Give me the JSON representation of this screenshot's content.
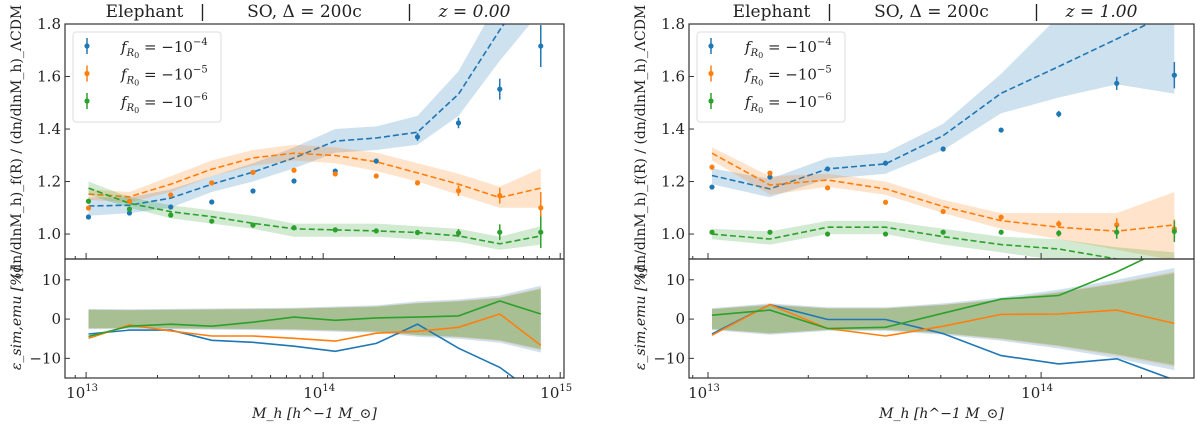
{
  "figure": {
    "colors": {
      "fR4": "#1f77b4",
      "fR5": "#ff7f0e",
      "fR6": "#2ca02c",
      "frame": "#333333"
    },
    "legend": [
      {
        "key": "fR4",
        "label": "f_R0 = −10^−4",
        "base": "f",
        "sub": "R",
        "subsub": "0",
        "eq": " = −10",
        "sup": "−4"
      },
      {
        "key": "fR5",
        "label": "f_R0 = −10^−5",
        "base": "f",
        "sub": "R",
        "subsub": "0",
        "eq": " = −10",
        "sup": "−5"
      },
      {
        "key": "fR6",
        "label": "f_R0 = −10^−6",
        "base": "f",
        "sub": "R",
        "subsub": "0",
        "eq": " = −10",
        "sup": "−6"
      }
    ],
    "ylabel_top": "(dn/dlnM_h)_f(R) / (dn/dlnM_h)_ΛCDM",
    "ylabel_bottom": "ε_sim,emu [%]",
    "xlabel": "M_h [h^−1 M_⊙]"
  },
  "chart_data": [
    {
      "type": "line",
      "panel": "left",
      "title": "Elephant  |  SO, Δ = 200c  |  z = 0.00",
      "title_parts": [
        "Elephant",
        "|",
        "SO,  Δ = 200c",
        "|",
        "z = 0.00"
      ],
      "xscale": "log",
      "xlim_log10": [
        12.911,
        15.016
      ],
      "xticks": [
        {
          "log10": 13,
          "label": "10",
          "sup": "13"
        },
        {
          "log10": 14,
          "label": "10",
          "sup": "14"
        },
        {
          "log10": 15,
          "label": "10",
          "sup": "15"
        }
      ],
      "log10_mass": [
        13.01,
        13.183,
        13.357,
        13.53,
        13.704,
        13.877,
        14.051,
        14.224,
        14.398,
        14.571,
        14.745,
        14.918
      ],
      "top": {
        "ylim": [
          0.905,
          1.8
        ],
        "yticks": [
          "1.0",
          "1.2",
          "1.4",
          "1.6",
          "1.8"
        ],
        "ytick_values": [
          1.0,
          1.2,
          1.4,
          1.6,
          1.8
        ],
        "legend_position": "upper-left",
        "series": [
          {
            "key": "fR4",
            "points": [
              1.065,
              1.08,
              1.103,
              1.122,
              1.164,
              1.202,
              1.24,
              1.278,
              1.37,
              1.423,
              1.552,
              1.716
            ],
            "errors": [
              0.004,
              0.004,
              0.004,
              0.005,
              0.005,
              0.006,
              0.007,
              0.01,
              0.015,
              0.02,
              0.04,
              0.08
            ],
            "emulator": [
              1.107,
              1.11,
              1.137,
              1.19,
              1.236,
              1.29,
              1.354,
              1.366,
              1.388,
              1.533,
              1.777,
              2.0
            ],
            "band_low": [
              1.07,
              1.08,
              1.1,
              1.16,
              1.2,
              1.25,
              1.31,
              1.32,
              1.34,
              1.45,
              1.66,
              1.85
            ],
            "band_high": [
              1.14,
              1.14,
              1.17,
              1.22,
              1.27,
              1.33,
              1.4,
              1.41,
              1.45,
              1.62,
              1.9,
              2.1
            ]
          },
          {
            "key": "fR5",
            "points": [
              1.099,
              1.125,
              1.149,
              1.195,
              1.235,
              1.243,
              1.229,
              1.221,
              1.195,
              1.165,
              1.146,
              1.1
            ],
            "errors": [
              0.003,
              0.003,
              0.003,
              0.004,
              0.004,
              0.005,
              0.006,
              0.008,
              0.01,
              0.02,
              0.03,
              0.06
            ],
            "emulator": [
              1.152,
              1.142,
              1.19,
              1.247,
              1.29,
              1.308,
              1.299,
              1.275,
              1.233,
              1.19,
              1.139,
              1.175
            ],
            "band_low": [
              1.13,
              1.12,
              1.16,
              1.22,
              1.26,
              1.28,
              1.27,
              1.24,
              1.2,
              1.15,
              1.1,
              1.1
            ],
            "band_high": [
              1.17,
              1.16,
              1.22,
              1.28,
              1.32,
              1.34,
              1.33,
              1.31,
              1.27,
              1.23,
              1.18,
              1.25
            ]
          },
          {
            "key": "fR6",
            "points": [
              1.125,
              1.095,
              1.072,
              1.049,
              1.034,
              1.024,
              1.016,
              1.012,
              1.006,
              1.004,
              1.007,
              1.007
            ],
            "errors": [
              0.003,
              0.003,
              0.003,
              0.003,
              0.004,
              0.004,
              0.005,
              0.006,
              0.01,
              0.015,
              0.03,
              0.06
            ],
            "emulator": [
              1.175,
              1.117,
              1.085,
              1.066,
              1.041,
              1.02,
              1.016,
              1.012,
              1.006,
              0.993,
              0.963,
              0.993
            ],
            "band_low": [
              1.15,
              1.1,
              1.06,
              1.04,
              1.02,
              0.99,
              0.99,
              0.99,
              0.98,
              0.97,
              0.94,
              0.96
            ],
            "band_high": [
              1.2,
              1.14,
              1.11,
              1.09,
              1.07,
              1.04,
              1.04,
              1.04,
              1.03,
              1.02,
              0.99,
              1.03
            ]
          }
        ]
      },
      "bottom": {
        "ylim": [
          -15,
          15.3
        ],
        "yticks": [
          "−10",
          "0",
          "10"
        ],
        "ytick_values": [
          -10,
          0,
          10
        ],
        "band_halfwidth": [
          2.6,
          2.5,
          2.6,
          2.7,
          2.8,
          2.9,
          3.2,
          3.5,
          4.5,
          5.0,
          6.0,
          8.5
        ],
        "series": [
          {
            "key": "fR4",
            "values": [
              -3.8,
              -2.8,
              -2.8,
              -5.4,
              -5.9,
              -6.9,
              -8.2,
              -6.2,
              -1.3,
              -7.4,
              -12.3,
              -20
            ]
          },
          {
            "key": "fR5",
            "values": [
              -4.9,
              -1.5,
              -3.0,
              -4.3,
              -4.3,
              -4.9,
              -5.6,
              -3.6,
              -3.1,
              -2.1,
              1.3,
              -6.7
            ]
          },
          {
            "key": "fR6",
            "values": [
              -4.4,
              -1.8,
              -1.3,
              -1.8,
              -0.8,
              0.5,
              -0.3,
              0.3,
              0.5,
              0.8,
              4.6,
              1.3
            ]
          }
        ]
      }
    },
    {
      "type": "line",
      "panel": "right",
      "title": "Elephant  |  SO, Δ = 200c  |  z = 1.00",
      "title_parts": [
        "Elephant",
        "|",
        "SO,  Δ = 200c",
        "|",
        "z = 1.00"
      ],
      "xscale": "log",
      "xlim_log10": [
        12.943,
        14.459
      ],
      "xticks": [
        {
          "log10": 13,
          "label": "10",
          "sup": "13"
        },
        {
          "log10": 14,
          "label": "10",
          "sup": "14"
        }
      ],
      "log10_mass": [
        13.012,
        13.186,
        13.359,
        13.533,
        13.706,
        13.88,
        14.053,
        14.227,
        14.4
      ],
      "top": {
        "ylim": [
          0.905,
          1.8
        ],
        "yticks": [
          "1.0",
          "1.2",
          "1.4",
          "1.6",
          "1.8"
        ],
        "ytick_values": [
          1.0,
          1.2,
          1.4,
          1.6,
          1.8
        ],
        "legend_position": "upper-left",
        "series": [
          {
            "key": "fR4",
            "points": [
              1.179,
              1.217,
              1.248,
              1.27,
              1.324,
              1.396,
              1.457,
              1.574,
              1.605
            ],
            "errors": [
              0.004,
              0.004,
              0.005,
              0.005,
              0.006,
              0.008,
              0.012,
              0.025,
              0.05
            ],
            "emulator": [
              1.223,
              1.172,
              1.248,
              1.267,
              1.375,
              1.536,
              1.638,
              1.743,
              1.85
            ],
            "band_low": [
              1.19,
              1.14,
              1.21,
              1.23,
              1.32,
              1.46,
              1.52,
              1.57,
              1.535
            ],
            "band_high": [
              1.25,
              1.21,
              1.29,
              1.31,
              1.42,
              1.61,
              1.83,
              2.0,
              2.1
            ]
          },
          {
            "key": "fR5",
            "points": [
              1.255,
              1.232,
              1.176,
              1.121,
              1.086,
              1.064,
              1.039,
              1.035,
              1.02
            ],
            "errors": [
              0.003,
              0.004,
              0.004,
              0.004,
              0.005,
              0.006,
              0.012,
              0.025,
              0.035
            ],
            "emulator": [
              1.308,
              1.187,
              1.206,
              1.172,
              1.105,
              1.051,
              1.026,
              1.011,
              1.035
            ],
            "band_low": [
              1.28,
              1.15,
              1.18,
              1.15,
              1.08,
              1.02,
              0.98,
              0.94,
              0.9
            ],
            "band_high": [
              1.33,
              1.22,
              1.23,
              1.2,
              1.13,
              1.08,
              1.08,
              1.08,
              1.16
            ]
          },
          {
            "key": "fR6",
            "points": [
              1.007,
              1.007,
              1.0,
              1.0,
              1.007,
              1.007,
              1.003,
              1.007,
              1.01
            ],
            "errors": [
              0.003,
              0.003,
              0.003,
              0.003,
              0.004,
              0.005,
              0.012,
              0.025,
              0.04
            ],
            "emulator": [
              1.0,
              0.981,
              1.026,
              1.026,
              0.99,
              0.96,
              0.943,
              0.905,
              0.89
            ],
            "band_low": [
              0.98,
              0.96,
              1.0,
              1.0,
              0.96,
              0.93,
              0.9,
              0.87,
              0.86
            ],
            "band_high": [
              1.02,
              1.01,
              1.05,
              1.05,
              1.02,
              0.99,
              0.98,
              0.95,
              0.93
            ]
          }
        ]
      },
      "bottom": {
        "ylim": [
          -15,
          15.3
        ],
        "yticks": [
          "−10",
          "0",
          "10"
        ],
        "ytick_values": [
          -10,
          0,
          10
        ],
        "band_halfwidth": [
          2.8,
          4.0,
          3.0,
          3.0,
          4.0,
          5.5,
          7.5,
          10.0,
          13.0
        ],
        "series": [
          {
            "key": "fR4",
            "values": [
              -3.8,
              3.7,
              -0.1,
              -0.1,
              -3.7,
              -9.3,
              -11.4,
              -10.1,
              -15.5
            ]
          },
          {
            "key": "fR5",
            "values": [
              -4.1,
              3.7,
              -2.4,
              -4.3,
              -1.8,
              1.2,
              1.3,
              2.3,
              -1.1
            ]
          },
          {
            "key": "fR6",
            "values": [
              1.0,
              2.3,
              -2.4,
              -2.1,
              1.5,
              5.1,
              6.0,
              12.0,
              19.0
            ]
          }
        ]
      }
    }
  ]
}
